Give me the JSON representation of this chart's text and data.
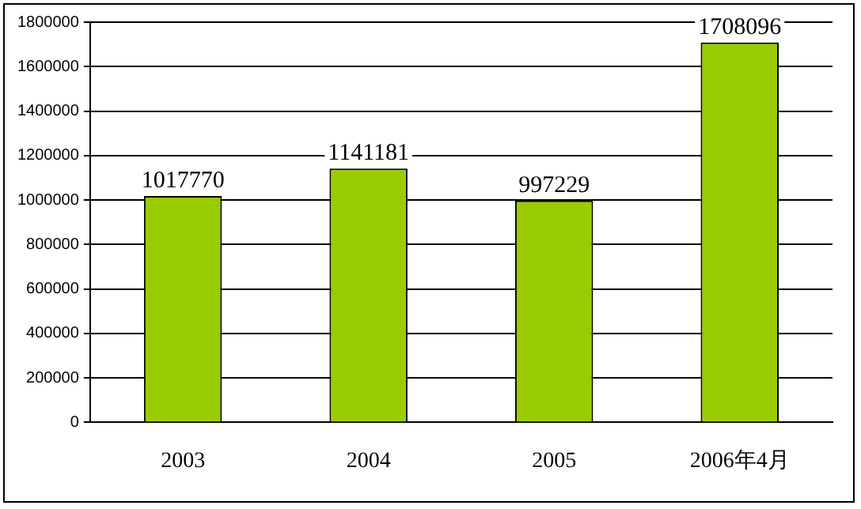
{
  "chart_data": {
    "type": "bar",
    "categories": [
      "2003",
      "2004",
      "2005",
      "2006年4月"
    ],
    "values": [
      1017770,
      1141181,
      997229,
      1708096
    ],
    "color": "#99cc00",
    "ylim": [
      0,
      1800000
    ],
    "yticks": [
      0,
      200000,
      400000,
      600000,
      800000,
      1000000,
      1200000,
      1400000,
      1600000,
      1800000
    ],
    "grid": "y",
    "data_labels": true
  }
}
